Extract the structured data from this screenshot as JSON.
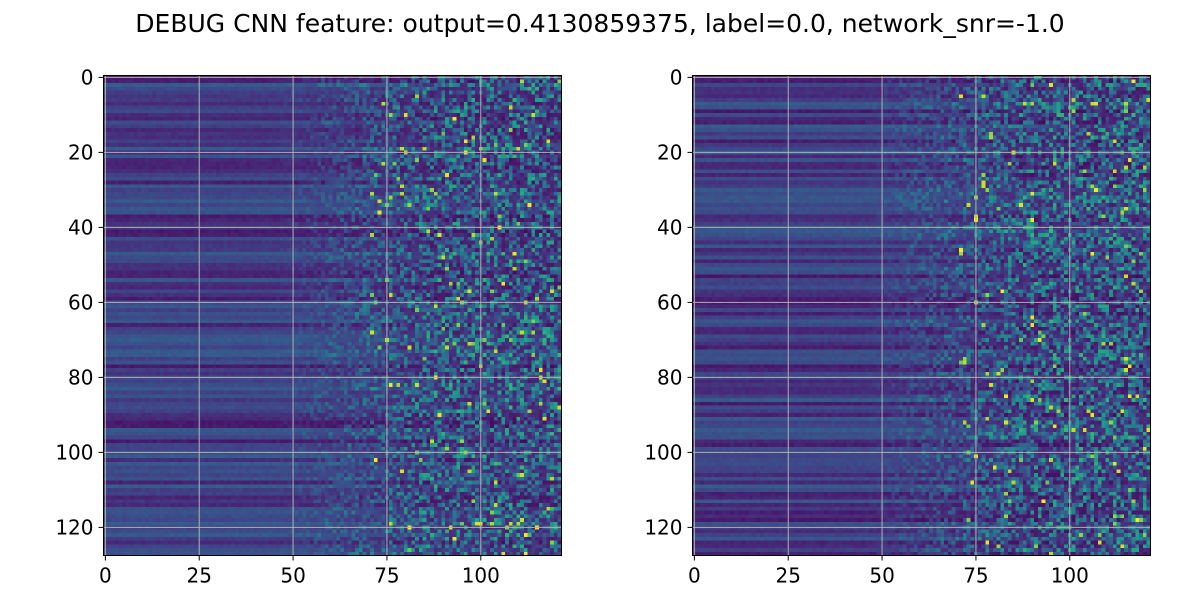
{
  "figure": {
    "suptitle": "DEBUG CNN feature: output=0.4130859375, label=0.0, network_snr=-1.0"
  },
  "chart_data": [
    {
      "type": "heatmap",
      "panel": "left",
      "title": "",
      "xlabel": "",
      "ylabel": "",
      "colormap": "viridis",
      "shape": [
        128,
        122
      ],
      "xlim": [
        -0.5,
        121.5
      ],
      "ylim": [
        127.5,
        -0.5
      ],
      "x_ticks": [
        0,
        25,
        50,
        75,
        100
      ],
      "y_ticks": [
        0,
        20,
        40,
        60,
        80,
        100,
        120
      ],
      "grid": true,
      "grid_color": "#b0b0b0",
      "seed": 7,
      "description": "Horizontal banded structure on columns 0-50 fading into high-variance noise with scattered bright (yellow) pixels for columns > 70"
    },
    {
      "type": "heatmap",
      "panel": "right",
      "title": "",
      "xlabel": "",
      "ylabel": "",
      "colormap": "viridis",
      "shape": [
        128,
        122
      ],
      "xlim": [
        -0.5,
        121.5
      ],
      "ylim": [
        127.5,
        -0.5
      ],
      "x_ticks": [
        0,
        25,
        50,
        75,
        100
      ],
      "y_ticks": [
        0,
        20,
        40,
        60,
        80,
        100,
        120
      ],
      "grid": true,
      "grid_color": "#b0b0b0",
      "seed": 23,
      "description": "Similar banded structure on low columns, noisier and sparser bright pixels for columns > 60"
    }
  ]
}
